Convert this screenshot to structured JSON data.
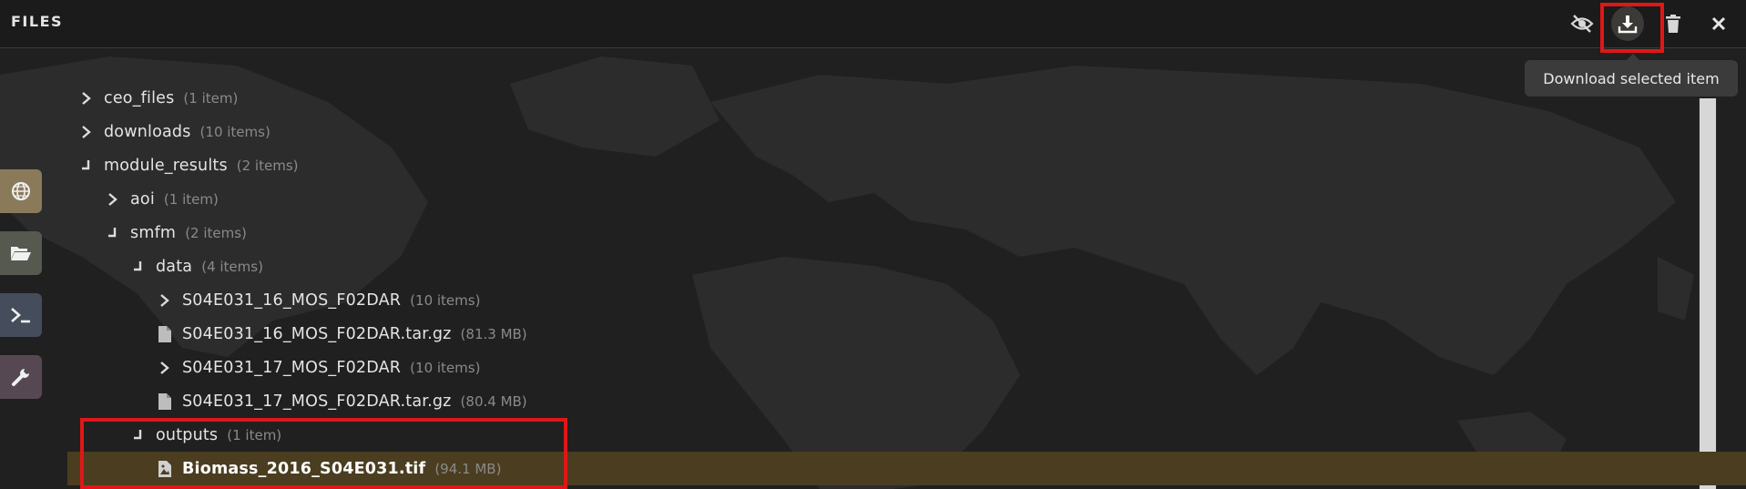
{
  "header": {
    "title": "FILES",
    "buttons": [
      {
        "name": "hide-files",
        "icon": "eye-slash-icon"
      },
      {
        "name": "download",
        "icon": "download-icon"
      },
      {
        "name": "delete",
        "icon": "trash-icon"
      },
      {
        "name": "close",
        "icon": "close-icon"
      }
    ]
  },
  "tooltip": "Download selected item",
  "sidebar": [
    {
      "name": "globe",
      "icon": "globe-icon",
      "color": "#8b7a5a"
    },
    {
      "name": "files",
      "icon": "folder-open-icon",
      "color": "#55594f"
    },
    {
      "name": "terminal",
      "icon": "terminal-icon",
      "color": "#454c5c"
    },
    {
      "name": "tools",
      "icon": "wrench-icon",
      "color": "#564852"
    }
  ],
  "tree": [
    {
      "name": "ceo_files",
      "meta": "(1 item)",
      "state": "collapsed"
    },
    {
      "name": "downloads",
      "meta": "(10 items)",
      "state": "collapsed"
    },
    {
      "name": "module_results",
      "meta": "(2 items)",
      "state": "expanded"
    },
    {
      "name": "aoi",
      "meta": "(1 item)",
      "state": "collapsed"
    },
    {
      "name": "smfm",
      "meta": "(2 items)",
      "state": "expanded"
    },
    {
      "name": "data",
      "meta": "(4 items)",
      "state": "expanded"
    },
    {
      "name": "S04E031_16_MOS_F02DAR",
      "meta": "(10 items)",
      "state": "collapsed"
    },
    {
      "name": "S04E031_16_MOS_F02DAR.tar.gz",
      "meta": "(81.3 MB)",
      "state": "file"
    },
    {
      "name": "S04E031_17_MOS_F02DAR",
      "meta": "(10 items)",
      "state": "collapsed"
    },
    {
      "name": "S04E031_17_MOS_F02DAR.tar.gz",
      "meta": "(80.4 MB)",
      "state": "file"
    },
    {
      "name": "outputs",
      "meta": "(1 item)",
      "state": "expanded"
    },
    {
      "name": "Biomass_2016_S04E031.tif",
      "meta": "(94.1 MB)",
      "state": "image-file",
      "selected": true
    }
  ],
  "colors": {
    "accent_selected": "#4b3d20",
    "highlight": "#e01717"
  }
}
